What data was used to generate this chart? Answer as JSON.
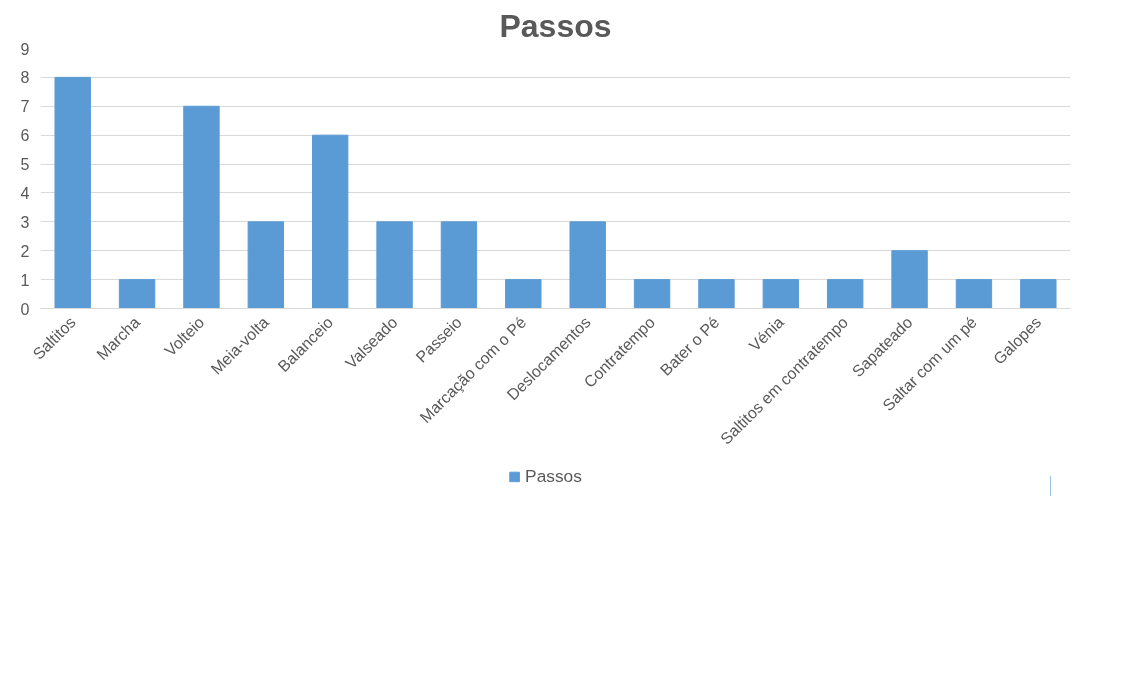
{
  "chart_data": {
    "type": "bar",
    "title": "Passos",
    "categories": [
      "Saltitos",
      "Marcha",
      "Volteio",
      "Meia-volta",
      "Balanceio",
      "Valseado",
      "Passeio",
      "Marcação com o Pé",
      "Deslocamentos",
      "Contratempo",
      "Bater o Pé",
      "Vénia",
      "Saltitos em contratempo",
      "Sapateado",
      "Saltar com um pé",
      "Galopes"
    ],
    "series": [
      {
        "name": "Passos",
        "color": "#5b9bd5",
        "values": [
          8,
          1,
          7,
          3,
          6,
          3,
          3,
          1,
          3,
          1,
          1,
          1,
          1,
          2,
          1,
          1
        ]
      }
    ],
    "ylim": [
      0,
      9
    ],
    "yticks": [
      0,
      1,
      2,
      3,
      4,
      5,
      6,
      7,
      8,
      9
    ],
    "grid": "y",
    "legend": "bottom"
  }
}
